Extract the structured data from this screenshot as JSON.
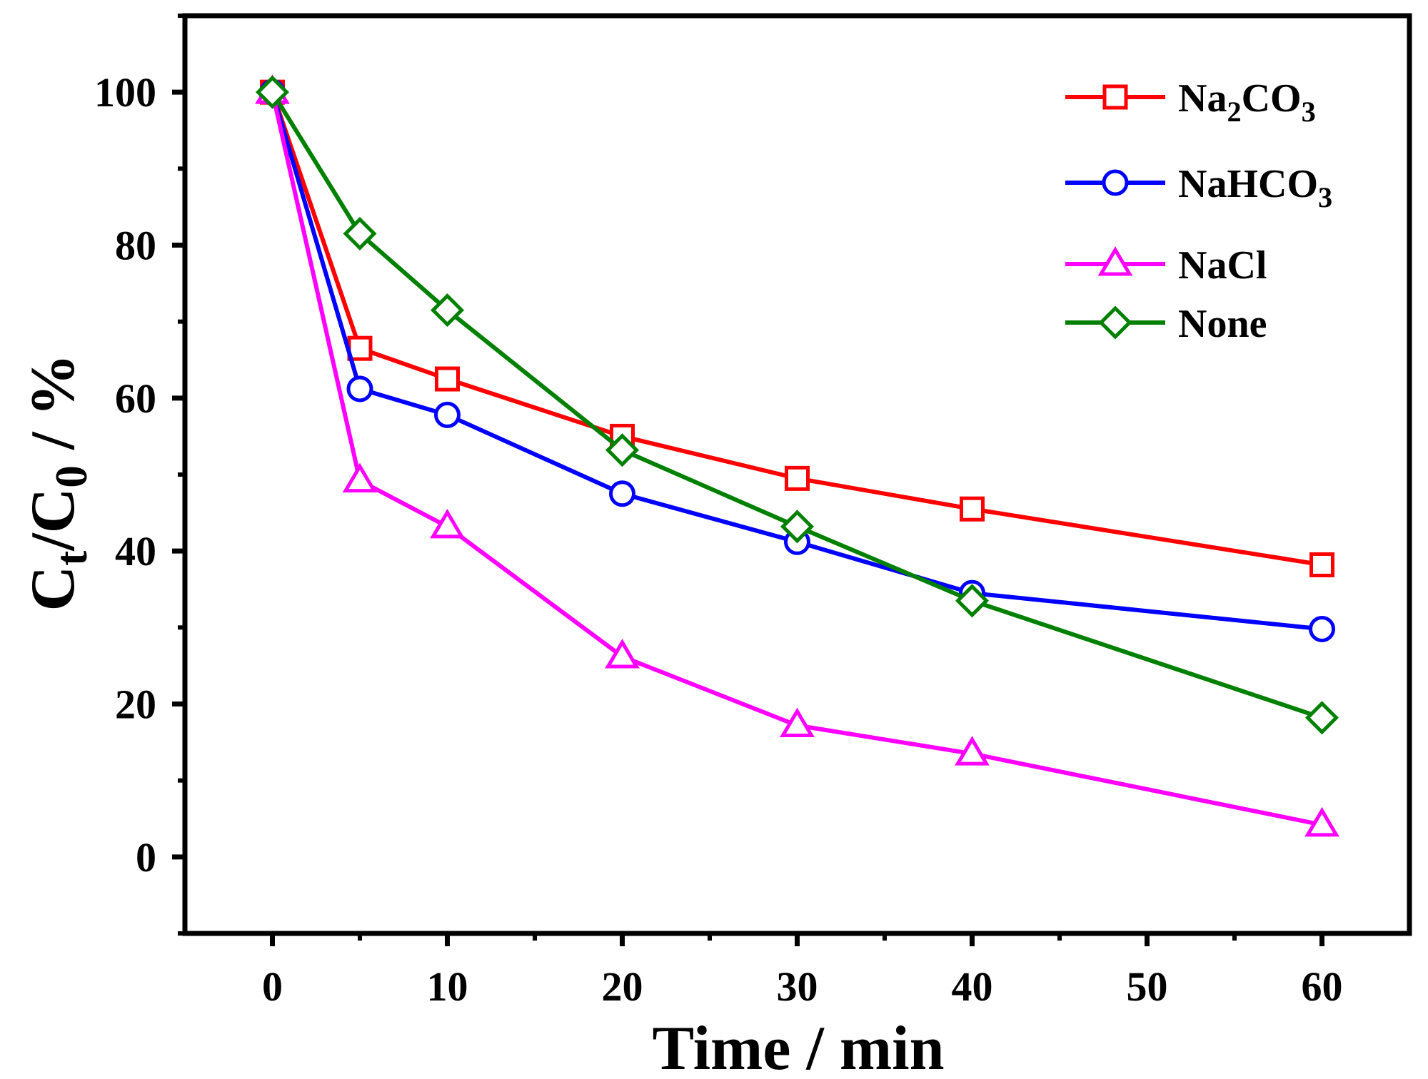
{
  "chart_data": {
    "type": "line",
    "x": [
      0,
      5,
      10,
      20,
      30,
      40,
      60
    ],
    "xlabel": "Time / min",
    "ylabel": {
      "main": "C",
      "sub1": "t",
      "slash": "/C",
      "sub2": "0",
      "unit": " / %"
    },
    "xlim": [
      -5,
      65
    ],
    "ylim": [
      -10,
      110
    ],
    "x_ticks": [
      0,
      10,
      20,
      30,
      40,
      50,
      60
    ],
    "y_ticks": [
      0,
      20,
      40,
      60,
      80,
      100
    ],
    "grid": false,
    "legend_position": "top-right",
    "series": [
      {
        "name": "Na2CO3",
        "label_parts": [
          "Na",
          "2",
          "CO",
          "3"
        ],
        "color": "#ff0000",
        "marker": "square",
        "values": [
          100,
          66.5,
          62.5,
          55,
          49.5,
          45.5,
          38.2
        ]
      },
      {
        "name": "NaHCO3",
        "label_parts": [
          "NaHCO",
          "3"
        ],
        "color": "#0000ff",
        "marker": "circle",
        "values": [
          100,
          61.2,
          57.8,
          47.5,
          41.2,
          34.5,
          29.8
        ]
      },
      {
        "name": "NaCl",
        "label_parts": [
          "NaCl"
        ],
        "color": "#ff00ff",
        "marker": "triangle",
        "values": [
          100,
          49.2,
          43.2,
          26.2,
          17.2,
          13.5,
          4.2
        ]
      },
      {
        "name": "None",
        "label_parts": [
          "None"
        ],
        "color": "#008000",
        "marker": "diamond",
        "values": [
          100,
          81.5,
          71.5,
          53.2,
          43.2,
          33.5,
          18.2
        ]
      }
    ]
  }
}
